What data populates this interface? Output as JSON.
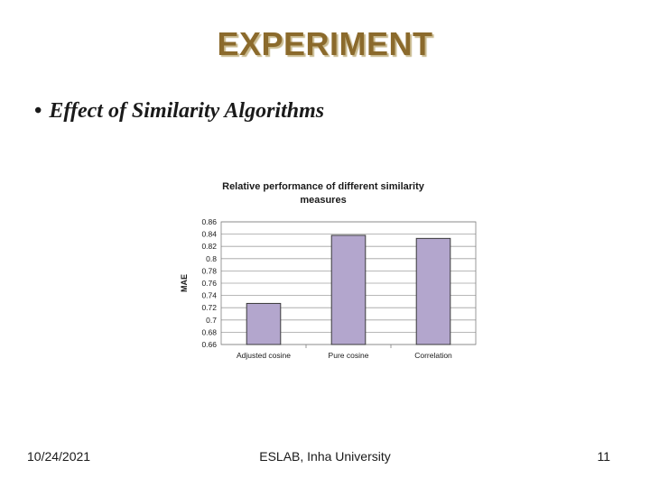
{
  "slide": {
    "title": "EXPERIMENT",
    "bullet": "Effect of Similarity Algorithms"
  },
  "footer": {
    "date": "10/24/2021",
    "org": "ESLAB, Inha University",
    "page": "11"
  },
  "chart_data": {
    "type": "bar",
    "title_lines": [
      "Relative performance of different similarity",
      "measures"
    ],
    "ylabel": "MAE",
    "xlabel": "",
    "categories": [
      "Adjusted cosine",
      "Pure cosine",
      "Correlation"
    ],
    "values": [
      0.727,
      0.838,
      0.833
    ],
    "ylim": [
      0.66,
      0.86
    ],
    "yticks": [
      "0.86",
      "0.84",
      "0.82",
      "0.8",
      "0.78",
      "0.76",
      "0.74",
      "0.72",
      "0.7",
      "0.68",
      "0.66"
    ],
    "bar_color": "#b3a6cd",
    "bar_stroke": "#3a3a3a",
    "grid": true,
    "grid_color": "#a0a0a0"
  }
}
